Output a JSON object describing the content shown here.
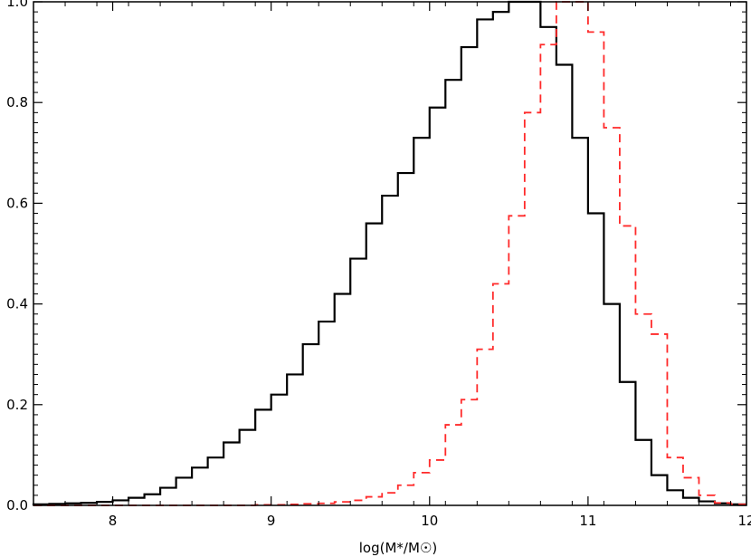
{
  "chart_data": {
    "type": "line",
    "title": "",
    "xlabel": "log(M*/M☉)",
    "ylabel": "",
    "xlim": [
      7.5,
      12.0
    ],
    "ylim": [
      0.0,
      1.0
    ],
    "x_ticks": [
      8,
      9,
      10,
      11,
      12
    ],
    "y_ticks": [
      0.0,
      0.2,
      0.4,
      0.6,
      0.8,
      1.0
    ],
    "x_tick_labels": [
      "8",
      "9",
      "10",
      "11",
      "12"
    ],
    "y_tick_labels": [
      "0.0",
      "0.2",
      "0.4",
      "0.6",
      "0.8",
      "1.0"
    ],
    "grid": false,
    "bin_width": 0.1,
    "series": [
      {
        "style": "solid",
        "color": "#000000",
        "bin_left": [
          7.5,
          7.6,
          7.7,
          7.8,
          7.9,
          8.0,
          8.1,
          8.2,
          8.3,
          8.4,
          8.5,
          8.6,
          8.7,
          8.8,
          8.9,
          9.0,
          9.1,
          9.2,
          9.3,
          9.4,
          9.5,
          9.6,
          9.7,
          9.8,
          9.9,
          10.0,
          10.1,
          10.2,
          10.3,
          10.4,
          10.5,
          10.6,
          10.7,
          10.8,
          10.9,
          11.0,
          11.1,
          11.2,
          11.3,
          11.4,
          11.5,
          11.6,
          11.7,
          11.8,
          11.9
        ],
        "values": [
          0.002,
          0.003,
          0.004,
          0.005,
          0.007,
          0.01,
          0.015,
          0.022,
          0.035,
          0.055,
          0.075,
          0.095,
          0.125,
          0.15,
          0.19,
          0.22,
          0.26,
          0.32,
          0.365,
          0.42,
          0.49,
          0.56,
          0.615,
          0.66,
          0.73,
          0.79,
          0.845,
          0.91,
          0.965,
          0.98,
          1.0,
          1.0,
          0.95,
          0.875,
          0.73,
          0.58,
          0.4,
          0.245,
          0.13,
          0.06,
          0.03,
          0.015,
          0.008,
          0.004,
          0.002
        ]
      },
      {
        "style": "dashed",
        "color": "#ff2a2a",
        "bin_left": [
          7.5,
          7.6,
          7.7,
          7.8,
          7.9,
          8.0,
          8.1,
          8.2,
          8.3,
          8.4,
          8.5,
          8.6,
          8.7,
          8.8,
          8.9,
          9.0,
          9.1,
          9.2,
          9.3,
          9.4,
          9.5,
          9.6,
          9.7,
          9.8,
          9.9,
          10.0,
          10.1,
          10.2,
          10.3,
          10.4,
          10.5,
          10.6,
          10.7,
          10.8,
          10.9,
          11.0,
          11.1,
          11.2,
          11.3,
          11.4,
          11.5,
          11.6,
          11.7,
          11.8,
          11.9
        ],
        "values": [
          0.0,
          0.0,
          0.0,
          0.0,
          0.0,
          0.0,
          0.0,
          0.0,
          0.0,
          0.0,
          0.0,
          0.0,
          0.0,
          0.0,
          0.001,
          0.001,
          0.002,
          0.003,
          0.004,
          0.007,
          0.01,
          0.017,
          0.025,
          0.04,
          0.065,
          0.09,
          0.16,
          0.21,
          0.31,
          0.44,
          0.575,
          0.78,
          0.915,
          1.0,
          1.0,
          0.94,
          0.75,
          0.555,
          0.38,
          0.34,
          0.095,
          0.055,
          0.02,
          0.005,
          0.002
        ]
      }
    ]
  }
}
